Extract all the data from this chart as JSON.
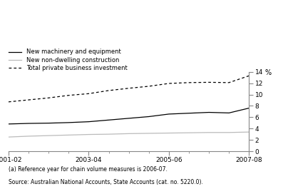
{
  "ylabel": "%",
  "xlim": [
    0,
    6
  ],
  "ylim": [
    0,
    14
  ],
  "yticks": [
    0,
    2,
    4,
    6,
    8,
    10,
    12,
    14
  ],
  "xtick_labels": [
    "2001-02",
    "2003-04",
    "2005-06",
    "2007-08"
  ],
  "xtick_positions": [
    0,
    2,
    4,
    6
  ],
  "x_minor_ticks": [
    0.5,
    1.0,
    1.5,
    2.5,
    3.0,
    3.5,
    4.5,
    5.0,
    5.5
  ],
  "x_values": [
    0,
    0.5,
    1,
    1.5,
    2,
    2.5,
    3,
    3.5,
    4,
    4.5,
    5,
    5.5,
    6
  ],
  "machinery": [
    4.8,
    4.9,
    4.95,
    5.05,
    5.2,
    5.5,
    5.8,
    6.1,
    6.55,
    6.7,
    6.85,
    6.75,
    7.6
  ],
  "construction": [
    2.5,
    2.65,
    2.75,
    2.85,
    2.95,
    3.0,
    3.1,
    3.15,
    3.2,
    3.25,
    3.3,
    3.3,
    3.38
  ],
  "total": [
    8.7,
    9.05,
    9.4,
    9.85,
    10.15,
    10.7,
    11.1,
    11.45,
    11.95,
    12.1,
    12.15,
    12.1,
    13.3
  ],
  "machinery_color": "#000000",
  "construction_color": "#bbbbbb",
  "total_color": "#000000",
  "legend_labels": [
    "New machinery and equipment",
    "New non-dwelling construction",
    "Total private business investment"
  ],
  "footnote": "(a) Reference year for chain volume measures is 2006-07.",
  "source": "Source: Australian National Accounts, State Accounts (cat. no. 5220.0).",
  "background_color": "#ffffff"
}
